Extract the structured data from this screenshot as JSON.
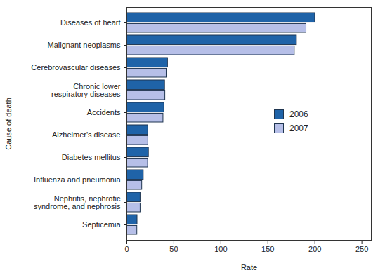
{
  "chart_data": {
    "type": "bar",
    "orientation": "horizontal",
    "x_label": "Rate",
    "y_label": "Cause of death",
    "categories": [
      "Diseases of heart",
      "Malignant neoplasms",
      "Cerebrovascular diseases",
      "Chronic lower\nrespiratory diseases",
      "Accidents",
      "Alzheimer's disease",
      "Diabetes mellitus",
      "Influenza and pneumonia",
      "Nephritis, nephrotic\nsyndrome, and nephrosis",
      "Septicemia"
    ],
    "series": [
      {
        "name": "2006",
        "color": "#1f63a8",
        "values": [
          200.2,
          180.7,
          43.6,
          40.5,
          39.8,
          22.6,
          23.3,
          17.8,
          14.5,
          11.2
        ]
      },
      {
        "name": "2007",
        "color": "#b6bfe8",
        "values": [
          190.9,
          178.4,
          42.2,
          40.8,
          38.8,
          22.7,
          22.5,
          16.2,
          14.5,
          11.0
        ]
      }
    ],
    "xlim": [
      0,
      260
    ],
    "xticks": [
      0,
      50,
      100,
      150,
      200,
      250
    ],
    "legend": "right",
    "grid": false
  }
}
